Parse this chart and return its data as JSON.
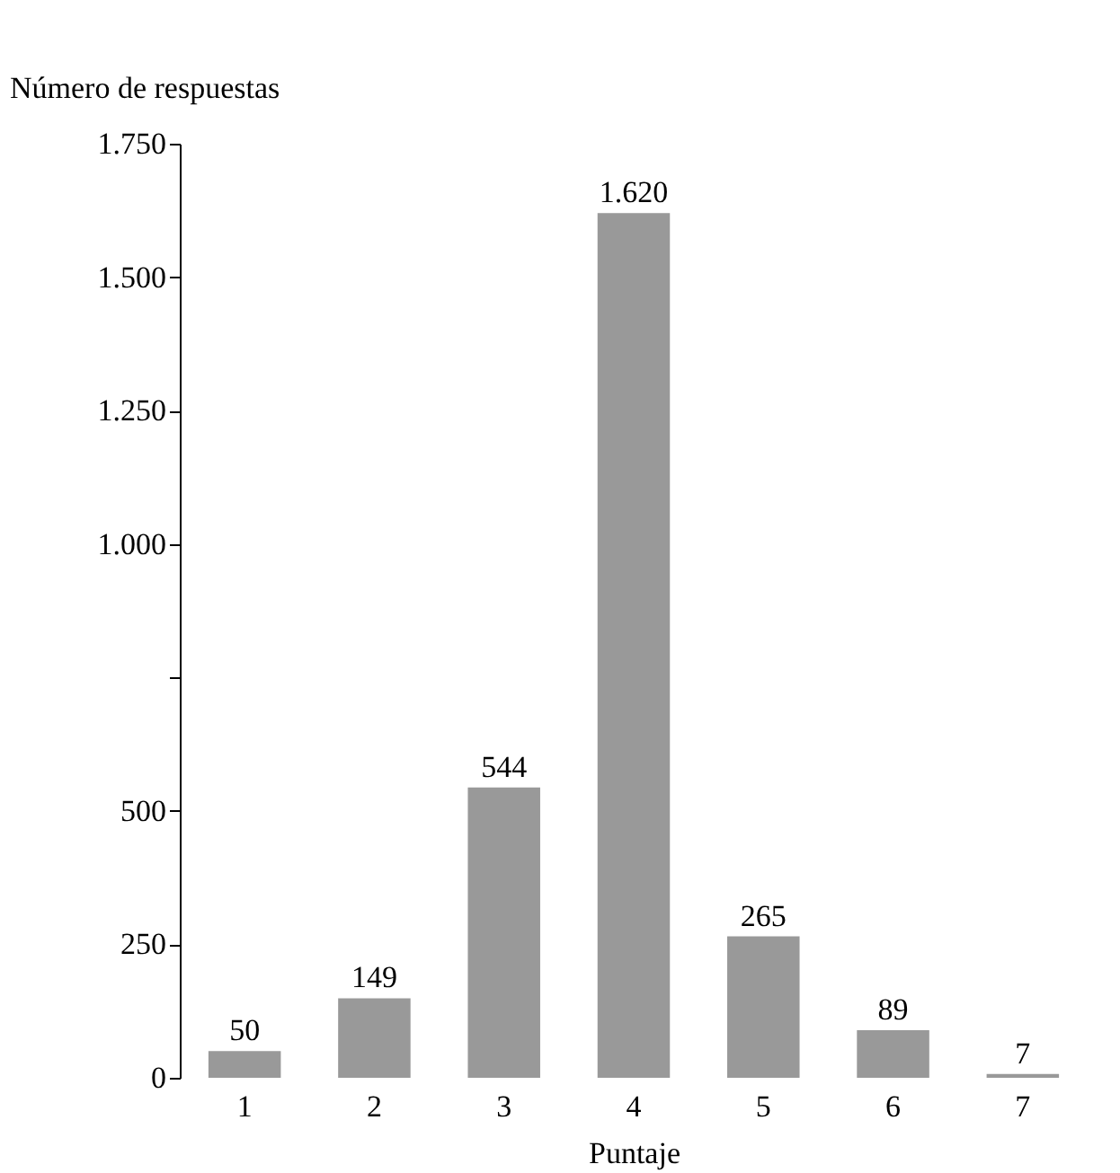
{
  "chart_data": {
    "type": "bar",
    "xlabel": "Puntaje",
    "ylabel": "Número de respuestas",
    "categories": [
      "1",
      "2",
      "3",
      "4",
      "5",
      "6",
      "7"
    ],
    "values": [
      50,
      149,
      544,
      1620,
      265,
      89,
      7
    ],
    "value_labels": [
      "50",
      "149",
      "544",
      "1.620",
      "265",
      "89",
      "7"
    ],
    "color": "#999999",
    "ylim": [
      0,
      1750
    ],
    "yticks": [
      0,
      {
        "value": 250,
        "label": "250"
      },
      {
        "value": 500,
        "label": "500"
      },
      {
        "value": 750,
        "label": null
      },
      {
        "value": 1000,
        "label": "1.000"
      },
      {
        "value": 1250,
        "label": "1.250"
      },
      {
        "value": 1500,
        "label": "1.500"
      },
      {
        "value": 1750,
        "label": "1.750"
      }
    ],
    "grid": false
  }
}
